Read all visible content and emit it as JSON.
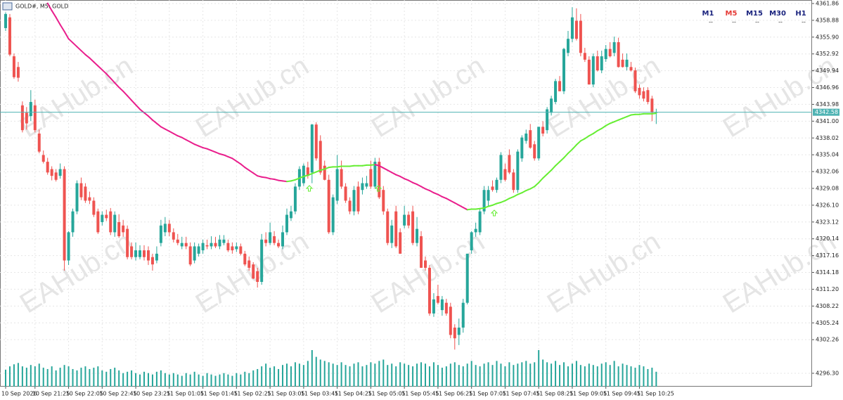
{
  "chart_data": {
    "type": "candlestick",
    "title": "GOLD#, M5: GOLD",
    "watermark": "EAHub.cn",
    "timeframes": [
      "M1",
      "M5",
      "M15",
      "M30",
      "H1"
    ],
    "timeframe_colors": [
      "#1a237e",
      "#e53935",
      "#1a237e",
      "#1a237e",
      "#1a237e"
    ],
    "timeframe_status": [
      "--",
      "--",
      "--",
      "--",
      "--"
    ],
    "up_color": "#26a69a",
    "down_color": "#ef5350",
    "ma_down_color": "#e91e8c",
    "ma_up_color": "#66ee33",
    "volume_color": "#26a69a",
    "price_line_color": "#4fb3b3",
    "last_price": 4342.58,
    "ylim": [
      4293.93,
      4362.48
    ],
    "yticks": [
      4361.86,
      4358.88,
      {
        "value": 4355.9,
        "label": "4355.90"
      },
      4352.92,
      4349.94,
      4346.96,
      4343.98,
      {
        "value": 4341.0,
        "label": "4341.00"
      },
      4338.02,
      4335.04,
      4332.06,
      4329.08,
      {
        "value": 4326.1,
        "label": "4326.10"
      },
      4323.12,
      4320.14,
      4317.16,
      4314.18,
      {
        "value": 4311.2,
        "label": "4311.20"
      },
      4308.22,
      4305.24,
      4302.26,
      {
        "value": 4296.3,
        "label": "4296.30"
      }
    ],
    "categories": [
      "10 Sep 2026",
      null,
      null,
      null,
      null,
      null,
      null,
      "10 Sep 21:25",
      null,
      null,
      null,
      null,
      null,
      null,
      null,
      "10 Sep 22:05",
      null,
      null,
      null,
      null,
      null,
      null,
      null,
      "10 Sep 22:45",
      null,
      null,
      null,
      null,
      null,
      null,
      null,
      "10 Sep 23:25",
      null,
      null,
      null,
      null,
      null,
      null,
      null,
      "11 Sep 01:05",
      null,
      null,
      null,
      null,
      null,
      null,
      null,
      "11 Sep 01:45",
      null,
      null,
      null,
      null,
      null,
      null,
      null,
      "11 Sep 02:25",
      null,
      null,
      null,
      null,
      null,
      null,
      null,
      "11 Sep 03:05",
      null,
      null,
      null,
      null,
      null,
      null,
      null,
      "11 Sep 03:45",
      null,
      null,
      null,
      null,
      null,
      null,
      null,
      "11 Sep 04:25",
      null,
      null,
      null,
      null,
      null,
      null,
      null,
      "11 Sep 05:05",
      null,
      null,
      null,
      null,
      null,
      null,
      null,
      "11 Sep 05:45",
      null,
      null,
      null,
      null,
      null,
      null,
      null,
      "11 Sep 06:25",
      null,
      null,
      null,
      null,
      null,
      null,
      null,
      "11 Sep 07:05",
      null,
      null,
      null,
      null,
      null,
      null,
      null,
      "11 Sep 07:45",
      null,
      null,
      null,
      null,
      null,
      null,
      null,
      "11 Sep 08:25",
      null,
      null,
      null,
      null,
      null,
      null,
      null,
      "11 Sep 09:05",
      null,
      null,
      null,
      null,
      null,
      null,
      null,
      "11 Sep 09:45",
      null,
      null,
      null,
      null,
      null,
      null,
      null,
      "11 Sep 10:25",
      null,
      null,
      null,
      null
    ],
    "ohlc": [
      [
        4357.5,
        4360.3,
        4357,
        4360
      ],
      [
        4359.4,
        4360,
        4352.5,
        4352.8
      ],
      [
        4352.5,
        4353,
        4348.5,
        4348.8
      ],
      [
        4350.6,
        4351.5,
        4348,
        4348.7
      ],
      [
        4343.8,
        4344.5,
        4339,
        4339.4
      ],
      [
        4342.5,
        4343.5,
        4339.5,
        4340.6
      ],
      [
        4341.9,
        4346.5,
        4341,
        4344.4
      ],
      [
        4343.8,
        4344.8,
        4339,
        4339.4
      ],
      [
        4338.8,
        4339.5,
        4335.3,
        4335.6
      ],
      [
        4335,
        4335.8,
        4333.5,
        4333.8
      ],
      [
        4333.8,
        4334.5,
        4331.5,
        4331.9
      ],
      [
        4332.5,
        4333,
        4330.5,
        4331.3
      ],
      [
        4331.9,
        4332.5,
        4330.3,
        4330.6
      ],
      [
        4331.3,
        4333.5,
        4330.8,
        4332.5
      ],
      [
        4332.5,
        4333,
        4314.5,
        4316.3
      ],
      [
        4316.3,
        4321.5,
        4315.5,
        4321.3
      ],
      [
        4321.3,
        4325.5,
        4320.5,
        4325
      ],
      [
        4325,
        4330.5,
        4324.5,
        4330
      ],
      [
        4330,
        4331,
        4327,
        4327.5
      ],
      [
        4329.4,
        4330,
        4326.5,
        4326.9
      ],
      [
        4327.5,
        4328.5,
        4326.3,
        4326.9
      ],
      [
        4326.9,
        4327.5,
        4324,
        4324.4
      ],
      [
        4325,
        4325.5,
        4321,
        4321.3
      ],
      [
        4323.1,
        4325,
        4322.5,
        4324.4
      ],
      [
        4324.4,
        4325.3,
        4323.3,
        4323.8
      ],
      [
        4325,
        4325.6,
        4320.8,
        4321.3
      ],
      [
        4321.3,
        4325,
        4320.5,
        4324.4
      ],
      [
        4323.1,
        4324.5,
        4320.3,
        4320.6
      ],
      [
        4322.5,
        4323.5,
        4320.5,
        4321.3
      ],
      [
        4321.9,
        4322.5,
        4316.5,
        4316.9
      ],
      [
        4318.8,
        4319.5,
        4316.5,
        4316.9
      ],
      [
        4316.9,
        4319.5,
        4316.3,
        4318.1
      ],
      [
        4316.9,
        4319,
        4316.5,
        4318.1
      ],
      [
        4318.1,
        4319,
        4316.3,
        4316.9
      ],
      [
        4318.1,
        4318.8,
        4315.5,
        4316.3
      ],
      [
        4316.9,
        4317.5,
        4314.5,
        4315.6
      ],
      [
        4316.3,
        4318.8,
        4315.8,
        4317.5
      ],
      [
        4319.4,
        4323.5,
        4318.8,
        4322.5
      ],
      [
        4321.3,
        4324,
        4320.6,
        4322.8
      ],
      [
        4322.8,
        4323.5,
        4320.6,
        4321.3
      ],
      [
        4321.3,
        4322,
        4319.5,
        4320
      ],
      [
        4320,
        4321,
        4319,
        4319.4
      ],
      [
        4318.8,
        4320.5,
        4318.3,
        4319.4
      ],
      [
        4319.4,
        4320.5,
        4318.3,
        4318.8
      ],
      [
        4318.8,
        4319.5,
        4315.3,
        4315.6
      ],
      [
        4316.3,
        4319.5,
        4315.8,
        4318.8
      ],
      [
        4317.5,
        4319.3,
        4317,
        4318.8
      ],
      [
        4318.1,
        4320,
        4317.5,
        4319.4
      ],
      [
        4319,
        4320,
        4318.3,
        4318.8
      ],
      [
        4318.8,
        4320.6,
        4318.3,
        4319.4
      ],
      [
        4319.4,
        4320.5,
        4318.5,
        4318.8
      ],
      [
        4318.8,
        4320.8,
        4318.3,
        4320
      ],
      [
        4319.4,
        4320.8,
        4319,
        4320
      ],
      [
        4319.4,
        4320,
        4317.8,
        4318.1
      ],
      [
        4318.8,
        4319.5,
        4317.5,
        4318.1
      ],
      [
        4318.3,
        4319.5,
        4317.8,
        4318.8
      ],
      [
        4318.8,
        4319.3,
        4317.2,
        4317.5
      ],
      [
        4317.5,
        4318,
        4315.3,
        4315.6
      ],
      [
        4316.3,
        4317,
        4314.5,
        4315
      ],
      [
        4315.6,
        4316,
        4313,
        4313.1
      ],
      [
        4314.4,
        4315,
        4311.5,
        4312.5
      ],
      [
        4312.5,
        4321,
        4312,
        4320
      ],
      [
        4320,
        4321.3,
        4318.8,
        4319.4
      ],
      [
        4319.4,
        4323,
        4319,
        4321.3
      ],
      [
        4320.6,
        4321.5,
        4319,
        4319.4
      ],
      [
        4319.4,
        4320,
        4318.5,
        4318.8
      ],
      [
        4318.8,
        4322.5,
        4318.3,
        4321.3
      ],
      [
        4321.3,
        4325.5,
        4320.8,
        4324.4
      ],
      [
        4323.8,
        4326,
        4323.3,
        4325
      ],
      [
        4325,
        4330,
        4324.5,
        4329.4
      ],
      [
        4329.4,
        4333,
        4328.8,
        4332.5
      ],
      [
        4330,
        4333.5,
        4329.5,
        4333.1
      ],
      [
        4332.8,
        4333.8,
        4330.8,
        4331.3
      ],
      [
        4331.9,
        4340.5,
        4330,
        4340.4
      ],
      [
        4340.4,
        4340.8,
        4334,
        4334.4
      ],
      [
        4337.5,
        4338.5,
        4331.5,
        4331.9
      ],
      [
        4333.1,
        4334,
        4330.5,
        4330.6
      ],
      [
        4330.6,
        4331.5,
        4321,
        4321.3
      ],
      [
        4321.3,
        4328,
        4320.8,
        4327.5
      ],
      [
        4326.9,
        4335,
        4326.3,
        4332.5
      ],
      [
        4332.5,
        4334,
        4329,
        4329.4
      ],
      [
        4329.4,
        4330,
        4326.5,
        4326.9
      ],
      [
        4326.9,
        4327.5,
        4324.5,
        4325
      ],
      [
        4325,
        4329.5,
        4324.3,
        4328.8
      ],
      [
        4329.4,
        4330.3,
        4324.5,
        4325
      ],
      [
        4328.8,
        4331,
        4328,
        4330
      ],
      [
        4329.4,
        4331.3,
        4329,
        4330
      ],
      [
        4332.5,
        4334,
        4329,
        4329.4
      ],
      [
        4329.4,
        4334.5,
        4329,
        4333.8
      ],
      [
        4333.8,
        4334.5,
        4327.2,
        4327.5
      ],
      [
        4328.8,
        4329.5,
        4324.4,
        4325
      ],
      [
        4325,
        4325.5,
        4319,
        4319.4
      ],
      [
        4319.4,
        4323.5,
        4318.5,
        4322.5
      ],
      [
        4325,
        4326,
        4318.5,
        4318.8
      ],
      [
        4321.3,
        4322,
        4317.5,
        4317.5
      ],
      [
        4322.5,
        4326,
        4322,
        4324.4
      ],
      [
        4324.4,
        4325,
        4322,
        4322.5
      ],
      [
        4325,
        4326,
        4319,
        4319.4
      ],
      [
        4319.4,
        4324,
        4318.8,
        4321.9
      ],
      [
        4320.6,
        4321.5,
        4315,
        4315
      ],
      [
        4316.3,
        4317,
        4314.5,
        4315
      ],
      [
        4315,
        4315.5,
        4306.5,
        4306.9
      ],
      [
        4306.9,
        4310.5,
        4306.3,
        4309.4
      ],
      [
        4310,
        4312,
        4308.5,
        4308.8
      ],
      [
        4307.5,
        4310,
        4306.5,
        4309.4
      ],
      [
        4308.8,
        4309.5,
        4306.5,
        4306.9
      ],
      [
        4308.1,
        4308.8,
        4302.5,
        4303.1
      ],
      [
        4304.4,
        4305,
        4300.5,
        4302.5
      ],
      [
        4303.1,
        4306,
        4301.3,
        4304.4
      ],
      [
        4304.4,
        4309.5,
        4303.5,
        4308.8
      ],
      [
        4308.8,
        4317.5,
        4308.5,
        4317.5
      ],
      [
        4318.1,
        4321.5,
        4317.5,
        4321.3
      ],
      [
        4321.3,
        4323,
        4320.5,
        4321.9
      ],
      [
        4321.3,
        4325.5,
        4320.8,
        4325
      ],
      [
        4325,
        4329.5,
        4324.5,
        4328.8
      ],
      [
        4326.9,
        4329.5,
        4326,
        4328.8
      ],
      [
        4329.4,
        4330.5,
        4328.5,
        4328.8
      ],
      [
        4328.8,
        4331,
        4328.3,
        4330.6
      ],
      [
        4330.6,
        4335.5,
        4330,
        4335
      ],
      [
        4332.5,
        4333.5,
        4330.3,
        4330.6
      ],
      [
        4335,
        4336,
        4331.6,
        4331.9
      ],
      [
        4331.9,
        4332.5,
        4328.3,
        4328.8
      ],
      [
        4328.8,
        4336,
        4328.3,
        4335.6
      ],
      [
        4334.4,
        4338.5,
        4333.8,
        4338.1
      ],
      [
        4337.5,
        4339.5,
        4337,
        4338.8
      ],
      [
        4339.4,
        4340.5,
        4336.1,
        4336.3
      ],
      [
        4336.9,
        4337.5,
        4334,
        4334.4
      ],
      [
        4334.4,
        4340,
        4334,
        4340
      ],
      [
        4340,
        4341,
        4338.3,
        4338.8
      ],
      [
        4339.4,
        4343.5,
        4338.8,
        4343.1
      ],
      [
        4342.5,
        4345.5,
        4342,
        4345
      ],
      [
        4344.4,
        4348.5,
        4344,
        4348.1
      ],
      [
        4348.1,
        4349,
        4346.3,
        4346.3
      ],
      [
        4346.3,
        4354,
        4345.8,
        4353.8
      ],
      [
        4353.1,
        4357,
        4352.5,
        4355.6
      ],
      [
        4355.6,
        4361.2,
        4355,
        4359.4
      ],
      [
        4358.8,
        4361,
        4355.3,
        4355.6
      ],
      [
        4358.8,
        4360,
        4352.5,
        4353.1
      ],
      [
        4353.1,
        4354,
        4351.5,
        4351.9
      ],
      [
        4351.9,
        4352.5,
        4347.5,
        4347.5
      ],
      [
        4347.5,
        4353,
        4347,
        4352.5
      ],
      [
        4352.5,
        4353.5,
        4349.8,
        4350
      ],
      [
        4350,
        4353.5,
        4349.5,
        4352.5
      ],
      [
        4352,
        4354.5,
        4351.5,
        4353.8
      ],
      [
        4353.8,
        4355,
        4352.3,
        4352.5
      ],
      [
        4353.1,
        4356,
        4352.5,
        4355
      ],
      [
        4355,
        4355.8,
        4350.5,
        4350.6
      ],
      [
        4351.9,
        4353,
        4350.5,
        4350.6
      ],
      [
        4350.6,
        4353,
        4350,
        4351.9
      ],
      [
        4350.6,
        4351.5,
        4349.8,
        4350
      ],
      [
        4350,
        4350.5,
        4346,
        4346.3
      ],
      [
        4346.9,
        4347.5,
        4345,
        4345.6
      ],
      [
        4346.3,
        4347,
        4344.5,
        4345
      ],
      [
        4346.5,
        4347,
        4344,
        4344.4
      ],
      [
        4345,
        4345.5,
        4341,
        4342.5
      ],
      [
        4342.5,
        4343.2,
        4340.5,
        4342.6
      ]
    ],
    "ma": [
      null,
      null,
      null,
      null,
      null,
      null,
      null,
      null,
      null,
      null,
      4361.9,
      4360.6,
      4359.4,
      4358.1,
      4356.9,
      4355.6,
      4354.9,
      4354.2,
      4353.5,
      4352.8,
      4352.2,
      4351.5,
      4350.8,
      4350.1,
      4349.4,
      4348.6,
      4347.8,
      4347.0,
      4346.3,
      4345.5,
      4344.7,
      4343.9,
      4343.1,
      4342.5,
      4341.9,
      4341.2,
      4340.6,
      4340.0,
      4339.6,
      4339.2,
      4338.8,
      4338.4,
      4338.1,
      4337.7,
      4337.3,
      4336.9,
      4336.6,
      4336.3,
      4336.1,
      4335.8,
      4335.5,
      4335.2,
      4335.0,
      4334.7,
      4334.4,
      4333.9,
      4333.4,
      4332.8,
      4332.3,
      4331.8,
      4331.3,
      4331.1,
      4331.0,
      4330.8,
      4330.7,
      4330.5,
      4330.4,
      4330.3,
      4330.4,
      4330.6,
      4330.9,
      4331.2,
      4331.4,
      4331.7,
      4332.0,
      4332.3,
      4332.5,
      4332.8,
      4332.9,
      4332.9,
      4333.0,
      4333.0,
      4333.0,
      4333.1,
      4333.1,
      4333.1,
      4333.2,
      4333.2,
      4333.3,
      4333.1,
      4332.7,
      4332.3,
      4331.9,
      4331.5,
      4331.2,
      4330.8,
      4330.5,
      4330.1,
      4329.8,
      4329.4,
      4329.0,
      4328.7,
      4328.3,
      4328.0,
      4327.6,
      4327.3,
      4326.9,
      4326.5,
      4326.1,
      4325.7,
      4325.3,
      4325.4,
      4325.4,
      4325.5,
      4325.6,
      4325.9,
      4326.1,
      4326.4,
      4326.6,
      4326.9,
      4327.3,
      4327.6,
      4328.0,
      4328.3,
      4328.7,
      4329.0,
      4329.4,
      4330.1,
      4330.9,
      4331.6,
      4332.3,
      4333.1,
      4333.8,
      4334.5,
      4335.3,
      4336.0,
      4336.8,
      4337.5,
      4337.9,
      4338.4,
      4338.8,
      4339.3,
      4339.7,
      4340.2,
      4340.6,
      4340.9,
      4341.2,
      4341.5,
      4341.8,
      4342.1,
      4342.2,
      4342.2,
      4342.3,
      4342.3,
      4342.3,
      4342.4
    ],
    "volume": [
      25,
      30,
      33,
      35,
      30,
      28,
      32,
      30,
      34,
      28,
      26,
      30,
      24,
      28,
      32,
      30,
      26,
      24,
      28,
      30,
      26,
      28,
      30,
      24,
      22,
      26,
      28,
      24,
      20,
      22,
      24,
      20,
      18,
      22,
      20,
      18,
      22,
      24,
      20,
      18,
      20,
      18,
      16,
      20,
      18,
      22,
      18,
      16,
      20,
      18,
      16,
      18,
      20,
      18,
      16,
      20,
      18,
      22,
      20,
      24,
      26,
      30,
      34,
      28,
      30,
      26,
      32,
      34,
      30,
      36,
      34,
      32,
      38,
      54,
      44,
      40,
      38,
      36,
      34,
      32,
      36,
      32,
      30,
      34,
      36,
      30,
      32,
      36,
      34,
      38,
      40,
      32,
      34,
      30,
      36,
      34,
      32,
      30,
      34,
      36,
      34,
      30,
      36,
      32,
      28,
      30,
      34,
      36,
      32,
      30,
      34,
      38,
      32,
      30,
      34,
      36,
      32,
      38,
      34,
      30,
      36,
      32,
      34,
      36,
      38,
      34,
      36,
      54,
      40,
      36,
      34,
      38,
      32,
      36,
      30,
      34,
      38,
      32,
      30,
      34,
      32,
      30,
      34,
      36,
      32,
      38,
      30,
      34,
      32,
      30,
      28,
      32,
      30,
      26,
      28,
      22
    ]
  }
}
